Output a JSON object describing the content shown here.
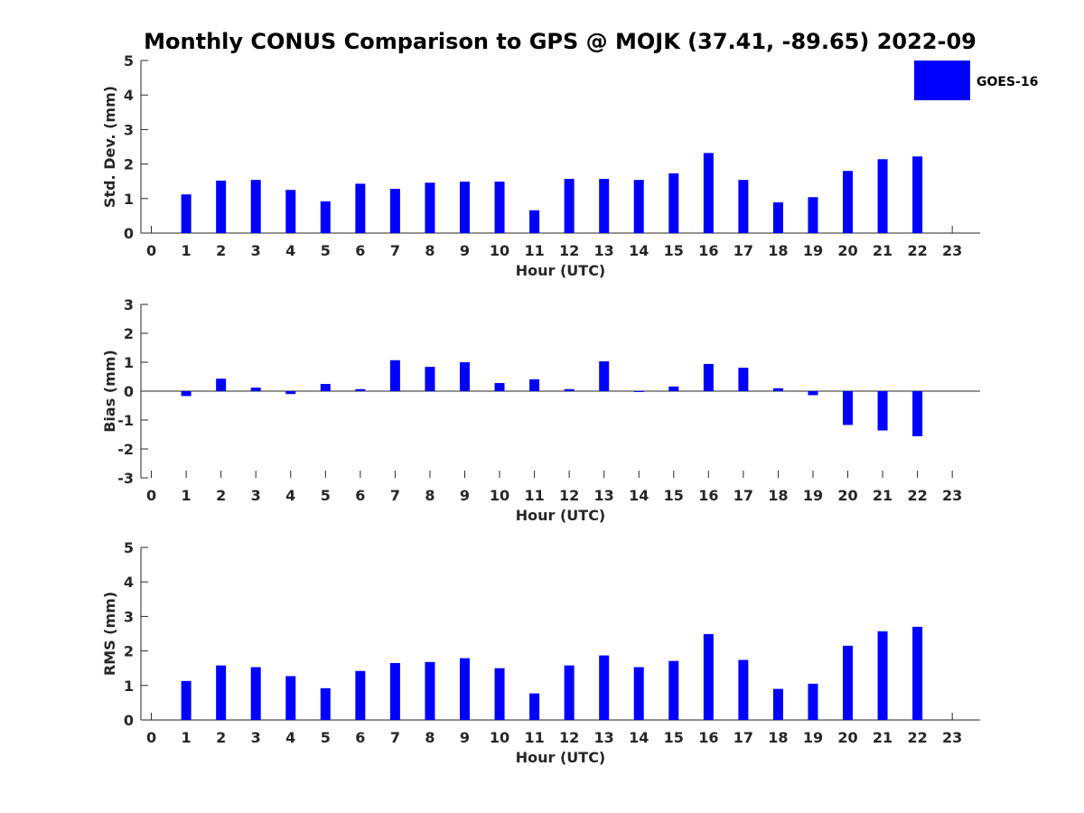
{
  "title": "Monthly CONUS Comparison to GPS @ MOJK (37.41, -89.65) 2022-09",
  "legend": {
    "label": "GOES-16",
    "color": "#0000ff",
    "placement": "top-right"
  },
  "chart_data": [
    {
      "type": "bar",
      "name": "stddev",
      "ylabel": "Std. Dev. (mm)",
      "xlabel": "Hour (UTC)",
      "ylim": [
        0,
        5
      ],
      "yticks": [
        0,
        1,
        2,
        3,
        4,
        5
      ],
      "xlim": [
        -0.3,
        23.8
      ],
      "categories": [
        0,
        1,
        2,
        3,
        4,
        5,
        6,
        7,
        8,
        9,
        10,
        11,
        12,
        13,
        14,
        15,
        16,
        17,
        18,
        19,
        20,
        21,
        22,
        23
      ],
      "values": [
        null,
        1.12,
        1.52,
        1.54,
        1.25,
        0.92,
        1.43,
        1.28,
        1.46,
        1.49,
        1.49,
        0.66,
        1.57,
        1.57,
        1.54,
        1.73,
        2.32,
        1.54,
        0.89,
        1.04,
        1.8,
        2.14,
        2.22,
        null
      ],
      "color": "#0000ff",
      "grid": false
    },
    {
      "type": "bar",
      "name": "bias",
      "ylabel": "Bias (mm)",
      "xlabel": "Hour (UTC)",
      "ylim": [
        -3,
        3
      ],
      "yticks": [
        -3,
        -2,
        -1,
        0,
        1,
        2,
        3
      ],
      "xlim": [
        -0.3,
        23.8
      ],
      "categories": [
        0,
        1,
        2,
        3,
        4,
        5,
        6,
        7,
        8,
        9,
        10,
        11,
        12,
        13,
        14,
        15,
        16,
        17,
        18,
        19,
        20,
        21,
        22,
        23
      ],
      "values": [
        null,
        -0.17,
        0.43,
        0.12,
        -0.1,
        0.25,
        0.07,
        1.07,
        0.84,
        1.0,
        0.28,
        0.41,
        0.07,
        1.03,
        -0.03,
        0.16,
        0.94,
        0.81,
        0.1,
        -0.14,
        -1.17,
        -1.36,
        -1.56,
        null
      ],
      "color": "#0000ff",
      "grid": false
    },
    {
      "type": "bar",
      "name": "rms",
      "ylabel": "RMS (mm)",
      "xlabel": "Hour (UTC)",
      "ylim": [
        0,
        5
      ],
      "yticks": [
        0,
        1,
        2,
        3,
        4,
        5
      ],
      "xlim": [
        -0.3,
        23.8
      ],
      "categories": [
        0,
        1,
        2,
        3,
        4,
        5,
        6,
        7,
        8,
        9,
        10,
        11,
        12,
        13,
        14,
        15,
        16,
        17,
        18,
        19,
        20,
        21,
        22,
        23
      ],
      "values": [
        null,
        1.13,
        1.58,
        1.53,
        1.27,
        0.92,
        1.42,
        1.65,
        1.68,
        1.79,
        1.5,
        0.77,
        1.58,
        1.87,
        1.53,
        1.71,
        2.49,
        1.74,
        0.9,
        1.05,
        2.15,
        2.57,
        2.7,
        null
      ],
      "color": "#0000ff",
      "grid": false
    }
  ]
}
